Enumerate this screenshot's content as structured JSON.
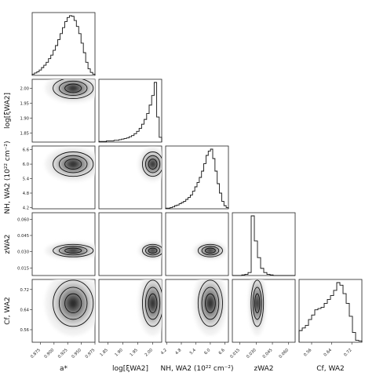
{
  "chart_data": {
    "type": "corner",
    "parameters": [
      {
        "name": "a_star",
        "label": "a*",
        "range": [
          0.86,
          0.975
        ],
        "ticks": [
          0.875,
          0.9,
          0.925,
          0.95,
          0.975
        ],
        "tick_labels": [
          "0.875",
          "0.900",
          "0.925",
          "0.950",
          "0.975"
        ],
        "peak": 0.935,
        "spread": 0.016
      },
      {
        "name": "log_xi_wa2",
        "label": "log[ξWA2]",
        "range": [
          1.82,
          2.03
        ],
        "ticks": [
          1.85,
          1.9,
          1.95,
          2.0
        ],
        "tick_labels": [
          "1.85",
          "1.90",
          "1.95",
          "2.00"
        ],
        "peak": 2.0,
        "spread": 0.015
      },
      {
        "name": "nh_wa2",
        "label": "NH, WA2 (10²² cm⁻²)",
        "range": [
          4.15,
          6.75
        ],
        "ticks": [
          4.2,
          4.8,
          5.4,
          6.0,
          6.6
        ],
        "tick_labels": [
          "4.2",
          "4.8",
          "5.4",
          "6.0",
          "6.6"
        ],
        "peak": 6.0,
        "spread": 0.22
      },
      {
        "name": "z_wa2",
        "label": "zWA2",
        "range": [
          0.008,
          0.066
        ],
        "ticks": [
          0.015,
          0.03,
          0.045,
          0.06
        ],
        "tick_labels": [
          "0.015",
          "0.030",
          "0.045",
          "0.060"
        ],
        "peak": 0.031,
        "spread": 0.0025
      },
      {
        "name": "cf_wa2",
        "label": "Cf, WA2",
        "range": [
          0.51,
          0.76
        ],
        "ticks": [
          0.56,
          0.64,
          0.72
        ],
        "tick_labels": [
          "0.56",
          "0.64",
          "0.72"
        ],
        "peak": 0.665,
        "spread": 0.04
      }
    ],
    "histograms": [
      [
        2,
        4,
        6,
        9,
        13,
        17,
        22,
        28,
        34,
        42,
        50,
        60,
        70,
        80,
        90,
        97,
        100,
        99,
        92,
        82,
        70,
        54,
        38,
        22,
        11,
        5,
        2
      ],
      [
        1,
        1,
        1,
        2,
        2,
        2,
        3,
        3,
        4,
        5,
        6,
        7,
        9,
        11,
        14,
        18,
        23,
        30,
        38,
        48,
        62,
        78,
        100,
        42,
        8
      ],
      [
        1,
        1,
        2,
        3,
        5,
        6,
        8,
        10,
        12,
        15,
        18,
        22,
        28,
        35,
        42,
        50,
        60,
        72,
        85,
        92,
        95,
        80,
        60,
        40,
        25,
        12,
        5,
        2
      ],
      [
        0,
        0,
        0,
        1,
        2,
        5,
        100,
        58,
        30,
        12,
        5,
        2,
        1,
        0,
        0,
        0,
        0,
        0,
        0,
        0
      ],
      [
        18,
        22,
        26,
        35,
        42,
        50,
        52,
        54,
        60,
        66,
        72,
        80,
        92,
        88,
        75,
        60,
        40,
        15,
        3,
        2
      ]
    ],
    "pairs": [
      {
        "x": "a_star",
        "y": "log_xi_wa2"
      },
      {
        "x": "a_star",
        "y": "nh_wa2"
      },
      {
        "x": "log_xi_wa2",
        "y": "nh_wa2"
      },
      {
        "x": "a_star",
        "y": "z_wa2"
      },
      {
        "x": "log_xi_wa2",
        "y": "z_wa2"
      },
      {
        "x": "nh_wa2",
        "y": "z_wa2"
      },
      {
        "x": "a_star",
        "y": "cf_wa2"
      },
      {
        "x": "log_xi_wa2",
        "y": "cf_wa2"
      },
      {
        "x": "nh_wa2",
        "y": "cf_wa2"
      },
      {
        "x": "z_wa2",
        "y": "cf_wa2"
      }
    ],
    "contour_levels": 3,
    "grid": false,
    "legend": "none"
  }
}
